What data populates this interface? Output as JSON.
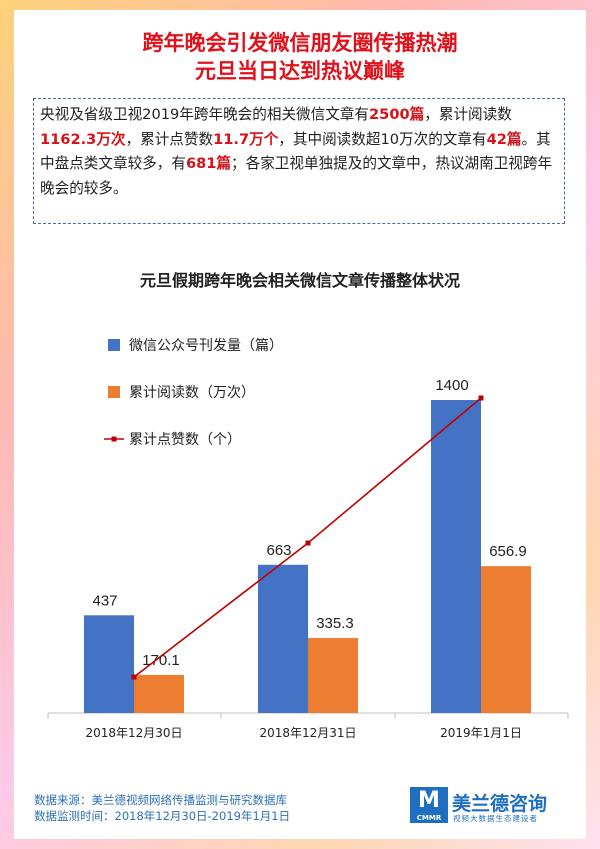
{
  "header": {
    "title_line1": "跨年晚会引发微信朋友圈传播热潮",
    "title_line2": "元旦当日达到热议巅峰"
  },
  "summary": {
    "p1": "央视及省级卫视2019年跨年晚会的相关微信文章有",
    "h1": "2500篇",
    "p2": "，累计阅读数",
    "h2": "1162.3万次",
    "p3": "，累计点赞数",
    "h3": "11.7万个",
    "p4": "，其中阅读数超10万次的文章有",
    "h4": "42篇",
    "p5": "。其中盘点类文章较多，有",
    "h5": "681篇",
    "p6": "；各家卫视单独提及的文章中，热议湖南卫视跨年晚会的较多。"
  },
  "footer": {
    "source": "数据来源：美兰德视频网络传播监测与研究数据库",
    "period": "数据监测时间：2018年12月30日-2019年1月1日",
    "logo_mark": "M",
    "logo_abbr": "CMMR",
    "logo_name": "美兰德咨询",
    "logo_tagline": "视频大数据生态建设者"
  },
  "chart_data": {
    "type": "bar",
    "title": "元旦假期跨年晚会相关微信文章传播整体状况",
    "categories": [
      "2018年12月30日",
      "2018年12月31日",
      "2019年1月1日"
    ],
    "series": [
      {
        "name": "微信公众号刊发量（篇）",
        "type": "bar",
        "color": "#4472c4",
        "values": [
          437,
          663,
          1400
        ]
      },
      {
        "name": "累计阅读数（万次）",
        "type": "bar",
        "color": "#ed7d31",
        "values": [
          170.1,
          335.3,
          656.9
        ]
      },
      {
        "name": "累计点赞数（个）",
        "type": "line",
        "color": "#c00000",
        "values": [
          null,
          null,
          null
        ]
      }
    ],
    "data_labels": [
      "437",
      "170.1",
      "663",
      "335.3",
      "1400",
      "656.9"
    ],
    "ylim": [
      0,
      1500
    ],
    "legend_position": "top-left",
    "grid": false
  }
}
